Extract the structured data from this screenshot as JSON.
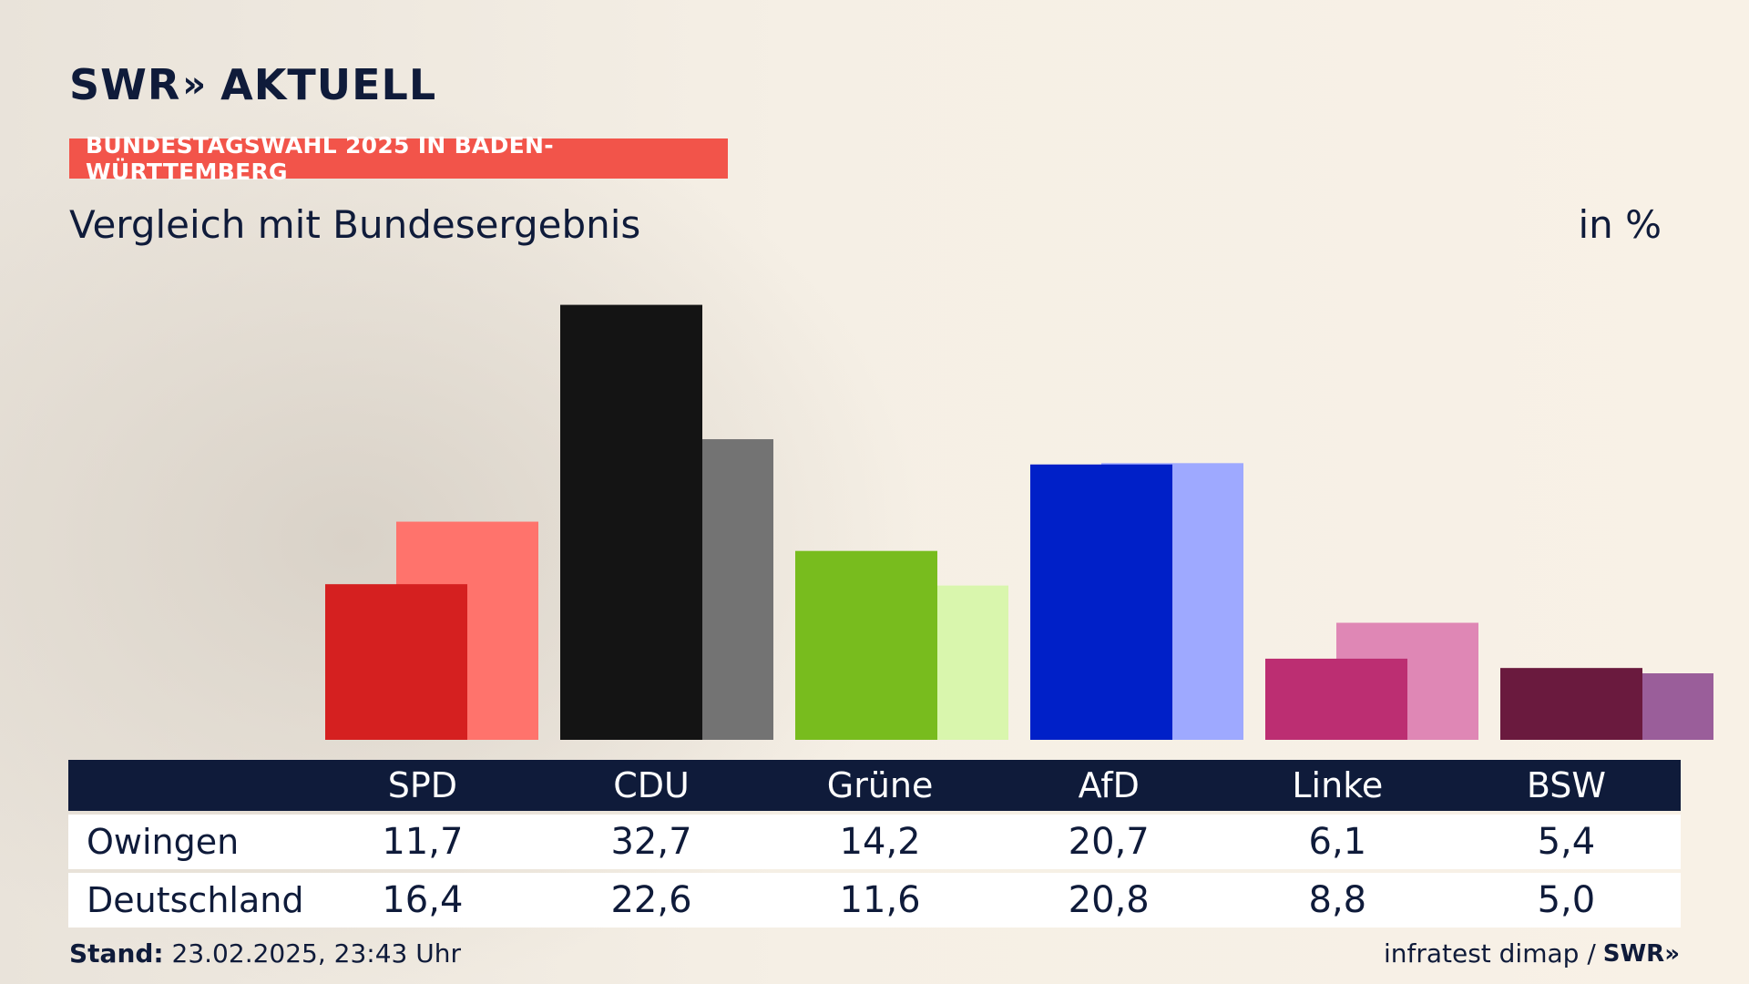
{
  "brand": {
    "logo_text": "SWR",
    "logo_chevrons": "»",
    "logo_suffix": "AKTUELL"
  },
  "tag": "BUNDESTAGSWAHL 2025 IN BADEN-WÜRTTEMBERG",
  "subtitle": "Vergleich mit Bundesergebnis",
  "unit": "in %",
  "table": {
    "columns": [
      "SPD",
      "CDU",
      "Grüne",
      "AfD",
      "Linke",
      "BSW"
    ],
    "rows": [
      {
        "label": "Owingen",
        "values": [
          "11,7",
          "32,7",
          "14,2",
          "20,7",
          "6,1",
          "5,4"
        ]
      },
      {
        "label": "Deutschland",
        "values": [
          "16,4",
          "22,6",
          "11,6",
          "20,8",
          "8,8",
          "5,0"
        ]
      }
    ]
  },
  "footer": {
    "stand_label": "Stand:",
    "stand_value": "23.02.2025, 23:43 Uhr",
    "source": "infratest dimap /",
    "source_logo": "SWR»"
  },
  "chart_data": {
    "type": "bar",
    "categories": [
      "SPD",
      "CDU",
      "Grüne",
      "AfD",
      "Linke",
      "BSW"
    ],
    "series": [
      {
        "name": "Owingen",
        "values": [
          11.7,
          32.7,
          14.2,
          20.7,
          6.1,
          5.4
        ]
      },
      {
        "name": "Deutschland",
        "values": [
          16.4,
          22.6,
          11.6,
          20.8,
          8.8,
          5.0
        ]
      }
    ],
    "title": "Vergleich mit Bundesergebnis",
    "unit": "in %",
    "colors": {
      "Owingen": [
        "#d52020",
        "#141414",
        "#78bc1e",
        "#0020c8",
        "#bc2e72",
        "#6a1a3e"
      ],
      "Deutschland": [
        "#ff736c",
        "#737373",
        "#d9f6ad",
        "#9ea9ff",
        "#df87b5",
        "#9a5e9a"
      ]
    },
    "grid": false
  }
}
